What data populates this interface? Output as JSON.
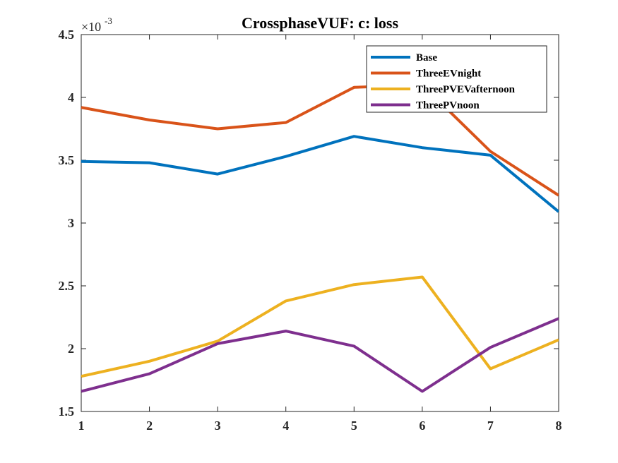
{
  "chart_data": {
    "type": "line",
    "title": "CrossphaseVUF: c: loss",
    "xlabel": "",
    "ylabel": "",
    "x": [
      1,
      2,
      3,
      4,
      5,
      6,
      7,
      8
    ],
    "xlim": [
      1,
      8
    ],
    "ylim": [
      1.5,
      4.5
    ],
    "x_ticks": [
      1,
      2,
      3,
      4,
      5,
      6,
      7,
      8
    ],
    "y_ticks": [
      1.5,
      2,
      2.5,
      3,
      3.5,
      4,
      4.5
    ],
    "y_tick_labels": [
      "1.5",
      "2",
      "2.5",
      "3",
      "3.5",
      "4",
      "4.5"
    ],
    "y_exponent_base": "×10",
    "y_exponent_power": "-3",
    "grid": false,
    "legend_position": "top-right",
    "series": [
      {
        "name": "Base",
        "color": "#0072BD",
        "values": [
          3.49,
          3.48,
          3.39,
          3.53,
          3.69,
          3.6,
          3.54,
          3.09
        ]
      },
      {
        "name": "ThreeEVnight",
        "color": "#D95319",
        "values": [
          3.92,
          3.82,
          3.75,
          3.8,
          4.08,
          4.1,
          3.57,
          3.22
        ]
      },
      {
        "name": "ThreePVEVafternoon",
        "color": "#EDB120",
        "values": [
          1.78,
          1.9,
          2.06,
          2.38,
          2.51,
          2.57,
          1.84,
          2.07
        ]
      },
      {
        "name": "ThreePVnoon",
        "color": "#7E2F8E",
        "values": [
          1.66,
          1.8,
          2.04,
          2.14,
          2.02,
          1.66,
          2.01,
          2.24
        ]
      }
    ]
  }
}
